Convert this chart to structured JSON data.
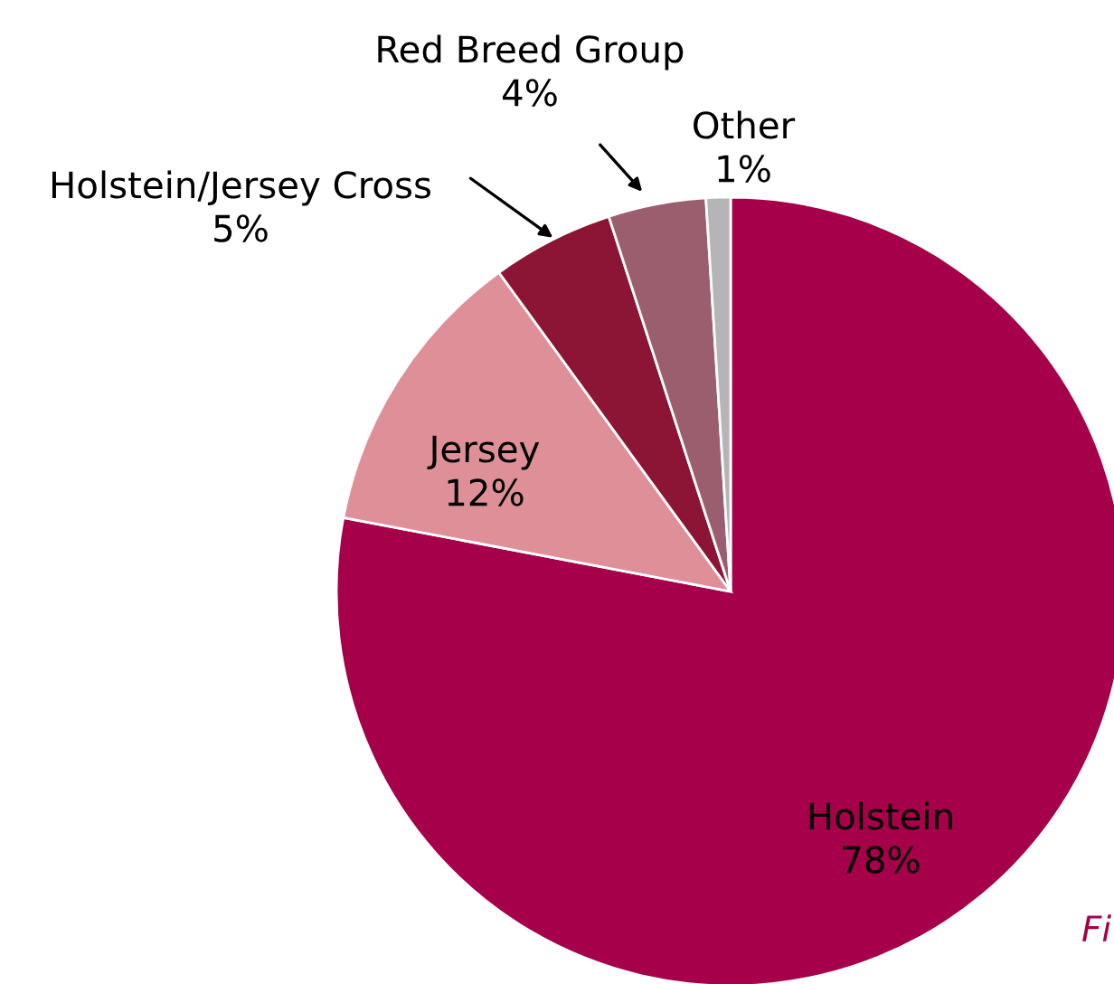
{
  "chart_data": {
    "type": "pie",
    "categories": [
      "Holstein",
      "Jersey",
      "Holstein/Jersey Cross",
      "Red Breed Group",
      "Other"
    ],
    "values": [
      78,
      12,
      5,
      4,
      1
    ],
    "value_labels": [
      "78%",
      "12%",
      "5%",
      "4%",
      "1%"
    ],
    "colors": [
      "#a6004a",
      "#de8f98",
      "#8c1535",
      "#9b5e6e",
      "#b5b5b8"
    ],
    "annotations": [
      "Fi"
    ]
  }
}
